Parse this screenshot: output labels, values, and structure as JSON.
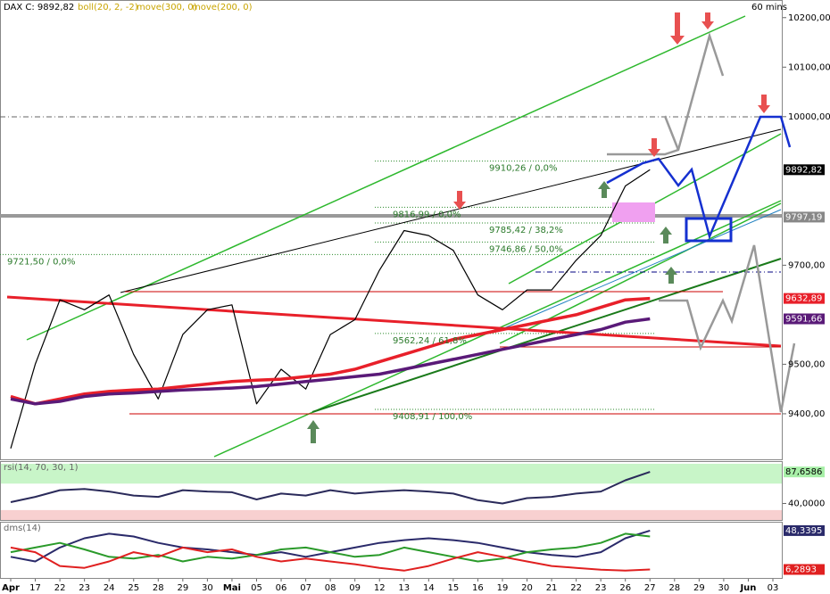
{
  "timeframe": "60 mins",
  "chart_data": [
    {
      "type": "line",
      "title": "DAX C: 9892,82",
      "indicator": "boll(20, 2, -2)",
      "categories": [
        "Apr",
        "17",
        "22",
        "23",
        "24",
        "25",
        "28",
        "29",
        "30",
        "Mai",
        "05",
        "06",
        "07",
        "08",
        "09",
        "12",
        "13",
        "14",
        "15",
        "16",
        "19",
        "20",
        "21",
        "22",
        "23",
        "26",
        "27",
        "28",
        "29",
        "30",
        "Jun",
        "03"
      ],
      "price": {
        "color": "#000000",
        "values": [
          9330,
          9500,
          9630,
          9610,
          9640,
          9520,
          9430,
          9560,
          9610,
          9620,
          9420,
          9490,
          9450,
          9560,
          9590,
          9690,
          9770,
          9760,
          9730,
          9640,
          9610,
          9650,
          9650,
          9710,
          9760,
          9860,
          9892.82,
          null,
          null,
          null,
          null,
          null
        ]
      },
      "series": [
        {
          "name": "move(300, 0)",
          "color": "#e8202a",
          "values": [
            9435,
            9420,
            9430,
            9440,
            9445,
            9448,
            9450,
            9455,
            9460,
            9465,
            9468,
            9470,
            9475,
            9480,
            9490,
            9505,
            9520,
            9535,
            9550,
            9560,
            9570,
            9580,
            9590,
            9600,
            9615,
            9630,
            9632.89,
            null,
            null,
            null,
            null,
            null
          ]
        },
        {
          "name": "move(200, 0)",
          "color": "#5a1a78",
          "values": [
            9430,
            9420,
            9425,
            9435,
            9440,
            9442,
            9445,
            9448,
            9450,
            9452,
            9455,
            9460,
            9465,
            9470,
            9475,
            9480,
            9490,
            9500,
            9510,
            9520,
            9530,
            9540,
            9550,
            9560,
            9570,
            9585,
            9591.66,
            null,
            null,
            null,
            null,
            null
          ]
        }
      ],
      "ylim": [
        9308,
        10232
      ],
      "yticks": [
        {
          "value": 10200,
          "label": "10200,00"
        },
        {
          "value": 10100,
          "label": "10100,00"
        },
        {
          "value": 10000,
          "label": "10000,00"
        },
        {
          "value": 9700,
          "label": "9700,00"
        },
        {
          "value": 9500,
          "label": "9500,00"
        },
        {
          "value": 9400,
          "label": "9400,00"
        }
      ],
      "price_labels": [
        {
          "value": 9892.82,
          "label": "9892,82",
          "color": "#000000"
        },
        {
          "value": 9797.19,
          "label": "9797,19",
          "color": "#888888"
        },
        {
          "value": 9632.89,
          "label": "9632,89",
          "color": "#e8202a"
        },
        {
          "value": 9591.66,
          "label": "9591,66",
          "color": "#5a1a78"
        }
      ],
      "fib_levels": [
        {
          "value": 9910.26,
          "label": "9910,26 / 0,0%"
        },
        {
          "value": 9816.99,
          "label": "9816,99 / 0,0%"
        },
        {
          "value": 9785.42,
          "label": "9785,42 / 38,2%"
        },
        {
          "value": 9746.86,
          "label": "9746,86 / 50,0%"
        },
        {
          "value": 9721.5,
          "label": "9721,50 / 0,0%"
        },
        {
          "value": 9562.24,
          "label": "9562,24 / 61,8%"
        },
        {
          "value": 9408.91,
          "label": "9408,91 / 100,0%"
        }
      ]
    },
    {
      "type": "line",
      "title": "rsi(14, 70, 30, 1)",
      "overbought": 70,
      "oversold": 30,
      "series": [
        {
          "color": "#2a2a5a",
          "values": [
            42,
            50,
            60,
            62,
            58,
            52,
            50,
            60,
            58,
            57,
            46,
            55,
            52,
            60,
            55,
            58,
            60,
            58,
            55,
            45,
            40,
            48,
            50,
            55,
            58,
            75,
            87.6586,
            null,
            null,
            null,
            null,
            null
          ]
        }
      ],
      "ylim": [
        15,
        100
      ],
      "yticks": [
        {
          "value": 40,
          "label": "40,0000"
        }
      ],
      "value_badges": [
        {
          "value": 87.6586,
          "label": "87,6586",
          "color": "#a8f0a8"
        }
      ]
    },
    {
      "type": "line",
      "title": "dms(14)",
      "series": [
        {
          "color": "#2a2a6a",
          "values": [
            20,
            15,
            30,
            40,
            45,
            42,
            35,
            30,
            28,
            25,
            22,
            25,
            20,
            25,
            30,
            35,
            38,
            40,
            38,
            35,
            30,
            25,
            22,
            20,
            25,
            40,
            48.3395,
            null,
            null,
            null,
            null,
            null
          ]
        },
        {
          "color": "#2a9a2a",
          "values": [
            25,
            30,
            35,
            28,
            20,
            18,
            22,
            15,
            20,
            18,
            22,
            28,
            30,
            25,
            20,
            22,
            30,
            25,
            20,
            15,
            18,
            25,
            28,
            30,
            35,
            45,
            42,
            null,
            null,
            null,
            null,
            null
          ]
        },
        {
          "color": "#e02020",
          "values": [
            30,
            25,
            10,
            8,
            15,
            25,
            20,
            30,
            25,
            28,
            20,
            15,
            18,
            15,
            12,
            8,
            5,
            10,
            18,
            25,
            20,
            15,
            10,
            8,
            6,
            5,
            6.2893,
            null,
            null,
            null,
            null,
            null
          ]
        }
      ],
      "ylim": [
        0,
        55
      ],
      "value_badges": [
        {
          "value": 48.3395,
          "label": "48,3395",
          "color": "#2a2a6a"
        },
        {
          "value": 6.2893,
          "label": "6,2893",
          "color": "#e02020"
        }
      ]
    }
  ]
}
